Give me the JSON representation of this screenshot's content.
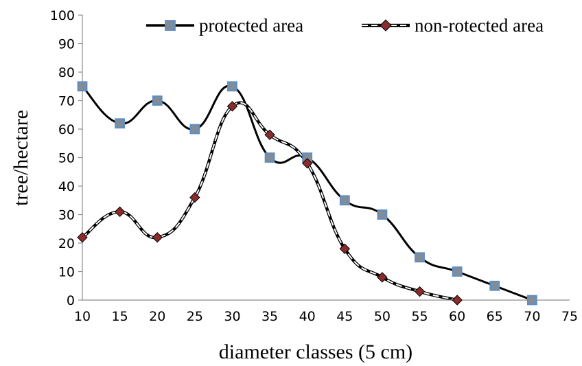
{
  "chart_data": {
    "type": "line",
    "xlabel": "diameter classes (5 cm)",
    "ylabel": "tree/hectare",
    "xlim": [
      10,
      75
    ],
    "ylim": [
      0,
      100
    ],
    "x_ticks": [
      10,
      15,
      20,
      25,
      30,
      35,
      40,
      45,
      50,
      55,
      60,
      65,
      70,
      75
    ],
    "y_ticks": [
      0,
      10,
      20,
      30,
      40,
      50,
      60,
      70,
      80,
      90,
      100
    ],
    "grid": false,
    "legend_position": "top",
    "series": [
      {
        "name": "protected area",
        "line_style": "solid",
        "marker": "square",
        "line_color": "#000000",
        "marker_color": "#7f8c99",
        "x": [
          10,
          15,
          20,
          25,
          30,
          35,
          40,
          45,
          50,
          55,
          60,
          65,
          70
        ],
        "y": [
          75,
          62,
          70,
          60,
          75,
          50,
          50,
          35,
          30,
          15,
          10,
          5,
          0
        ]
      },
      {
        "name": "non-rotected area",
        "line_style": "dashed",
        "marker": "diamond",
        "line_color": "#000000",
        "marker_color": "#8b2b2b",
        "x": [
          10,
          15,
          20,
          25,
          30,
          35,
          40,
          45,
          50,
          55,
          60
        ],
        "y": [
          22,
          31,
          22,
          36,
          68,
          58,
          48,
          18,
          8,
          3,
          0
        ]
      }
    ]
  }
}
